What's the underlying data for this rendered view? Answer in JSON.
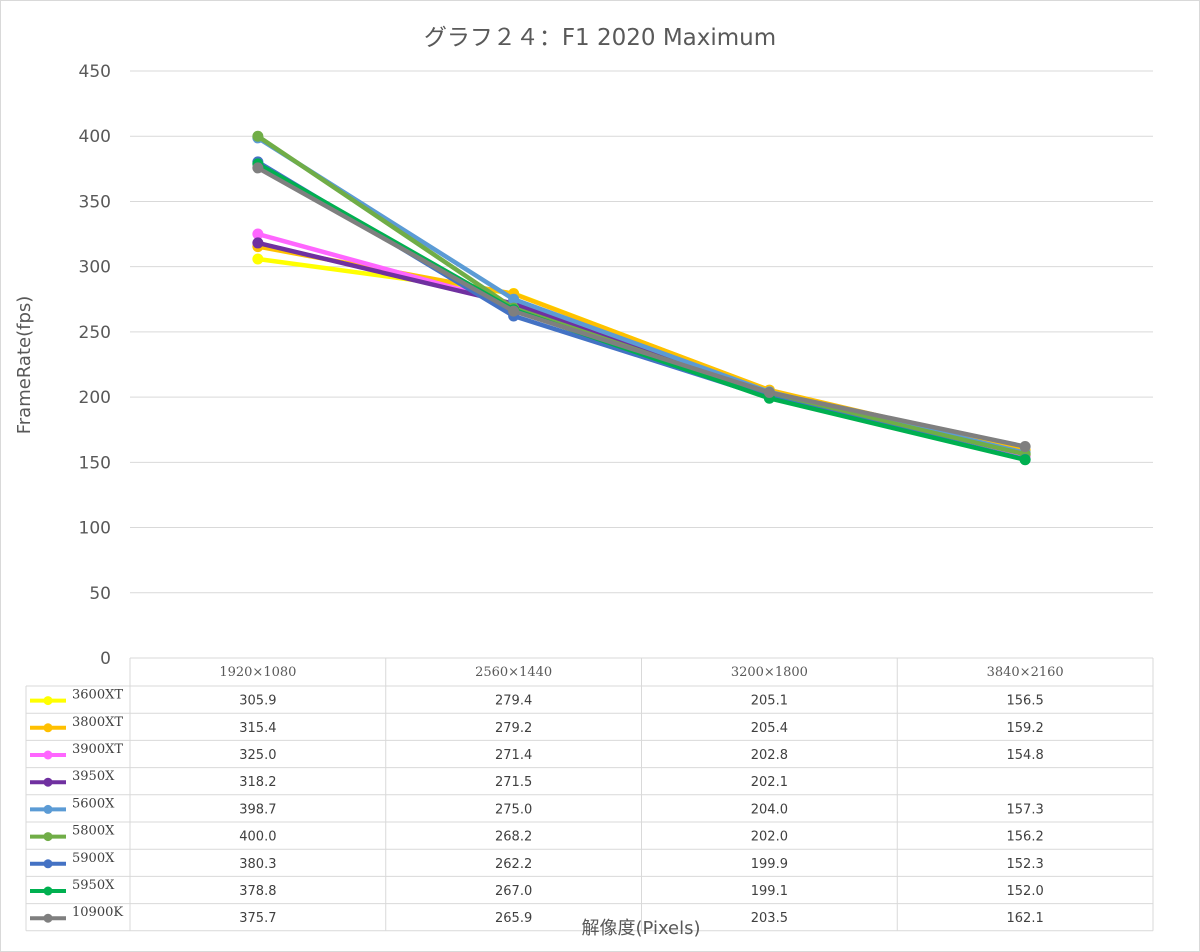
{
  "chart_data": {
    "type": "line",
    "title": "グラフ２４：F1 2020 Maximum",
    "xlabel": "解像度(Pixels)",
    "ylabel": "FrameRate(fps)",
    "ylim": [
      0,
      450
    ],
    "yticks": [
      "0",
      "50",
      "100",
      "150",
      "200",
      "250",
      "300",
      "350",
      "400",
      "450"
    ],
    "grid": true,
    "legend": "data-table",
    "categories": [
      "1920×1080",
      "2560×1440",
      "3200×1800",
      "3840×2160"
    ],
    "series": [
      {
        "name": "3600XT",
        "color": "#ffff00",
        "values": [
          305.9,
          279.4,
          205.1,
          156.5
        ],
        "labels": [
          "305.9",
          "279.4",
          "205.1",
          "156.5"
        ]
      },
      {
        "name": "3800XT",
        "color": "#ffc000",
        "values": [
          315.4,
          279.2,
          205.4,
          159.2
        ],
        "labels": [
          "315.4",
          "279.2",
          "205.4",
          "159.2"
        ]
      },
      {
        "name": "3900XT",
        "color": "#ff66ff",
        "values": [
          325.0,
          271.4,
          202.8,
          154.8
        ],
        "labels": [
          "325.0",
          "271.4",
          "202.8",
          "154.8"
        ]
      },
      {
        "name": "3950X",
        "color": "#7030a0",
        "values": [
          318.2,
          271.5,
          202.1,
          null
        ],
        "labels": [
          "318.2",
          "271.5",
          "202.1",
          ""
        ]
      },
      {
        "name": "5600X",
        "color": "#5b9bd5",
        "values": [
          398.7,
          275.0,
          204.0,
          157.3
        ],
        "labels": [
          "398.7",
          "275.0",
          "204.0",
          "157.3"
        ]
      },
      {
        "name": "5800X",
        "color": "#70ad47",
        "values": [
          400.0,
          268.2,
          202.0,
          156.2
        ],
        "labels": [
          "400.0",
          "268.2",
          "202.0",
          "156.2"
        ]
      },
      {
        "name": "5900X",
        "color": "#4472c4",
        "values": [
          380.3,
          262.2,
          199.9,
          152.3
        ],
        "labels": [
          "380.3",
          "262.2",
          "199.9",
          "152.3"
        ]
      },
      {
        "name": "5950X",
        "color": "#00b050",
        "values": [
          378.8,
          267.0,
          199.1,
          152.0
        ],
        "labels": [
          "378.8",
          "267.0",
          "199.1",
          "152.0"
        ]
      },
      {
        "name": "10900K",
        "color": "#7f7f7f",
        "values": [
          375.7,
          265.9,
          203.5,
          162.1
        ],
        "labels": [
          "375.7",
          "265.9",
          "203.5",
          "162.1"
        ]
      }
    ]
  }
}
